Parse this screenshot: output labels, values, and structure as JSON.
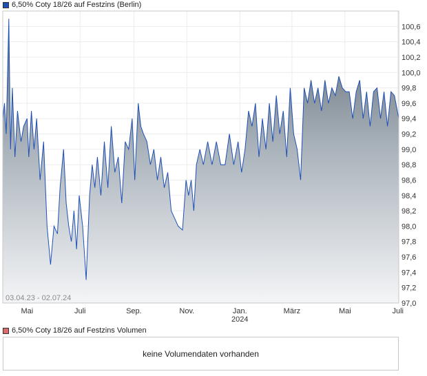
{
  "colors": {
    "price_line": "#1f4fb5",
    "price_swatch": "#1f4fb5",
    "volume_swatch": "#d96b6b"
  },
  "legend": {
    "price": "6,50% Coty 18/26 auf Festzins (Berlin)",
    "volume": "6,50% Coty 18/26 auf Festzins Volumen"
  },
  "volume_panel": {
    "message": "keine Volumendaten vorhanden"
  },
  "chart_data": {
    "type": "area",
    "date_range_label": "03.04.23 - 02.07.24",
    "x_range": [
      "2023-04-03",
      "2024-07-02"
    ],
    "ylim": [
      97.0,
      100.8
    ],
    "y_ticks": [
      "100,6",
      "100,4",
      "100,2",
      "100,0",
      "99,8",
      "99,6",
      "99,4",
      "99,2",
      "99,0",
      "98,8",
      "98,6",
      "98,4",
      "98,2",
      "98,0",
      "97,8",
      "97,6",
      "97,4",
      "97,2",
      "97,0"
    ],
    "x_ticks": [
      {
        "date": "2023-05-01",
        "label": "Mai"
      },
      {
        "date": "2023-07-01",
        "label": "Juli"
      },
      {
        "date": "2023-09-01",
        "label": "Sep."
      },
      {
        "date": "2023-11-01",
        "label": "Nov."
      },
      {
        "date": "2024-01-01",
        "label": "Jan.",
        "sub": "2024"
      },
      {
        "date": "2024-03-01",
        "label": "März"
      },
      {
        "date": "2024-05-01",
        "label": "Mai"
      },
      {
        "date": "2024-07-01",
        "label": "Juli"
      }
    ],
    "series": [
      {
        "points": [
          [
            "2023-04-03",
            99.4
          ],
          [
            "2023-04-05",
            99.6
          ],
          [
            "2023-04-07",
            99.2
          ],
          [
            "2023-04-10",
            100.7
          ],
          [
            "2023-04-12",
            99.0
          ],
          [
            "2023-04-14",
            99.8
          ],
          [
            "2023-04-17",
            98.9
          ],
          [
            "2023-04-20",
            99.5
          ],
          [
            "2023-04-24",
            99.1
          ],
          [
            "2023-04-27",
            99.3
          ],
          [
            "2023-05-01",
            99.4
          ],
          [
            "2023-05-03",
            98.9
          ],
          [
            "2023-05-06",
            99.5
          ],
          [
            "2023-05-09",
            99.0
          ],
          [
            "2023-05-12",
            99.4
          ],
          [
            "2023-05-16",
            98.6
          ],
          [
            "2023-05-20",
            99.1
          ],
          [
            "2023-05-24",
            98.0
          ],
          [
            "2023-05-28",
            97.5
          ],
          [
            "2023-06-01",
            98.0
          ],
          [
            "2023-06-05",
            97.9
          ],
          [
            "2023-06-08",
            98.5
          ],
          [
            "2023-06-12",
            99.0
          ],
          [
            "2023-06-15",
            98.3
          ],
          [
            "2023-06-18",
            98.0
          ],
          [
            "2023-06-21",
            97.8
          ],
          [
            "2023-06-24",
            98.2
          ],
          [
            "2023-06-27",
            97.7
          ],
          [
            "2023-06-30",
            98.4
          ],
          [
            "2023-07-04",
            98.0
          ],
          [
            "2023-07-08",
            97.3
          ],
          [
            "2023-07-12",
            98.4
          ],
          [
            "2023-07-15",
            98.8
          ],
          [
            "2023-07-18",
            98.5
          ],
          [
            "2023-07-21",
            98.9
          ],
          [
            "2023-07-25",
            98.4
          ],
          [
            "2023-07-29",
            99.1
          ],
          [
            "2023-08-02",
            98.5
          ],
          [
            "2023-08-06",
            99.3
          ],
          [
            "2023-08-10",
            98.7
          ],
          [
            "2023-08-14",
            98.9
          ],
          [
            "2023-08-18",
            98.3
          ],
          [
            "2023-08-22",
            99.1
          ],
          [
            "2023-08-26",
            99.0
          ],
          [
            "2023-08-30",
            99.4
          ],
          [
            "2023-09-02",
            98.6
          ],
          [
            "2023-09-06",
            99.6
          ],
          [
            "2023-09-09",
            99.3
          ],
          [
            "2023-09-12",
            99.2
          ],
          [
            "2023-09-16",
            99.1
          ],
          [
            "2023-09-20",
            98.8
          ],
          [
            "2023-09-24",
            99.0
          ],
          [
            "2023-09-28",
            98.6
          ],
          [
            "2023-10-02",
            98.9
          ],
          [
            "2023-10-06",
            98.5
          ],
          [
            "2023-10-10",
            98.7
          ],
          [
            "2023-10-14",
            98.2
          ],
          [
            "2023-10-18",
            98.1
          ],
          [
            "2023-10-22",
            98.0
          ],
          [
            "2023-10-27",
            97.95
          ],
          [
            "2023-10-31",
            98.6
          ],
          [
            "2023-11-03",
            98.4
          ],
          [
            "2023-11-06",
            98.6
          ],
          [
            "2023-11-09",
            98.2
          ],
          [
            "2023-11-12",
            98.8
          ],
          [
            "2023-11-16",
            99.0
          ],
          [
            "2023-11-20",
            98.8
          ],
          [
            "2023-11-25",
            99.1
          ],
          [
            "2023-11-30",
            98.8
          ],
          [
            "2023-12-05",
            99.1
          ],
          [
            "2023-12-10",
            98.8
          ],
          [
            "2023-12-15",
            98.8
          ],
          [
            "2023-12-20",
            99.2
          ],
          [
            "2023-12-25",
            98.8
          ],
          [
            "2023-12-30",
            99.1
          ],
          [
            "2024-01-03",
            98.7
          ],
          [
            "2024-01-07",
            99.0
          ],
          [
            "2024-01-11",
            99.5
          ],
          [
            "2024-01-15",
            99.3
          ],
          [
            "2024-01-19",
            99.6
          ],
          [
            "2024-01-23",
            98.9
          ],
          [
            "2024-01-27",
            99.4
          ],
          [
            "2024-01-31",
            99.0
          ],
          [
            "2024-02-04",
            99.6
          ],
          [
            "2024-02-08",
            99.1
          ],
          [
            "2024-02-12",
            99.7
          ],
          [
            "2024-02-16",
            99.2
          ],
          [
            "2024-02-20",
            99.5
          ],
          [
            "2024-02-24",
            98.9
          ],
          [
            "2024-02-28",
            99.8
          ],
          [
            "2024-03-03",
            99.2
          ],
          [
            "2024-03-07",
            99.0
          ],
          [
            "2024-03-11",
            98.6
          ],
          [
            "2024-03-15",
            99.8
          ],
          [
            "2024-03-19",
            99.6
          ],
          [
            "2024-03-23",
            99.9
          ],
          [
            "2024-03-27",
            99.6
          ],
          [
            "2024-03-31",
            99.8
          ],
          [
            "2024-04-04",
            99.5
          ],
          [
            "2024-04-08",
            99.9
          ],
          [
            "2024-04-12",
            99.6
          ],
          [
            "2024-04-16",
            99.8
          ],
          [
            "2024-04-20",
            99.7
          ],
          [
            "2024-04-24",
            99.95
          ],
          [
            "2024-04-28",
            99.8
          ],
          [
            "2024-05-02",
            99.75
          ],
          [
            "2024-05-06",
            99.75
          ],
          [
            "2024-05-10",
            99.4
          ],
          [
            "2024-05-14",
            99.75
          ],
          [
            "2024-05-18",
            99.9
          ],
          [
            "2024-05-22",
            99.4
          ],
          [
            "2024-05-26",
            99.75
          ],
          [
            "2024-05-30",
            99.3
          ],
          [
            "2024-06-03",
            99.75
          ],
          [
            "2024-06-07",
            99.8
          ],
          [
            "2024-06-11",
            99.4
          ],
          [
            "2024-06-15",
            99.75
          ],
          [
            "2024-06-19",
            99.3
          ],
          [
            "2024-06-23",
            99.75
          ],
          [
            "2024-06-27",
            99.7
          ],
          [
            "2024-07-02",
            99.4
          ]
        ]
      }
    ]
  }
}
